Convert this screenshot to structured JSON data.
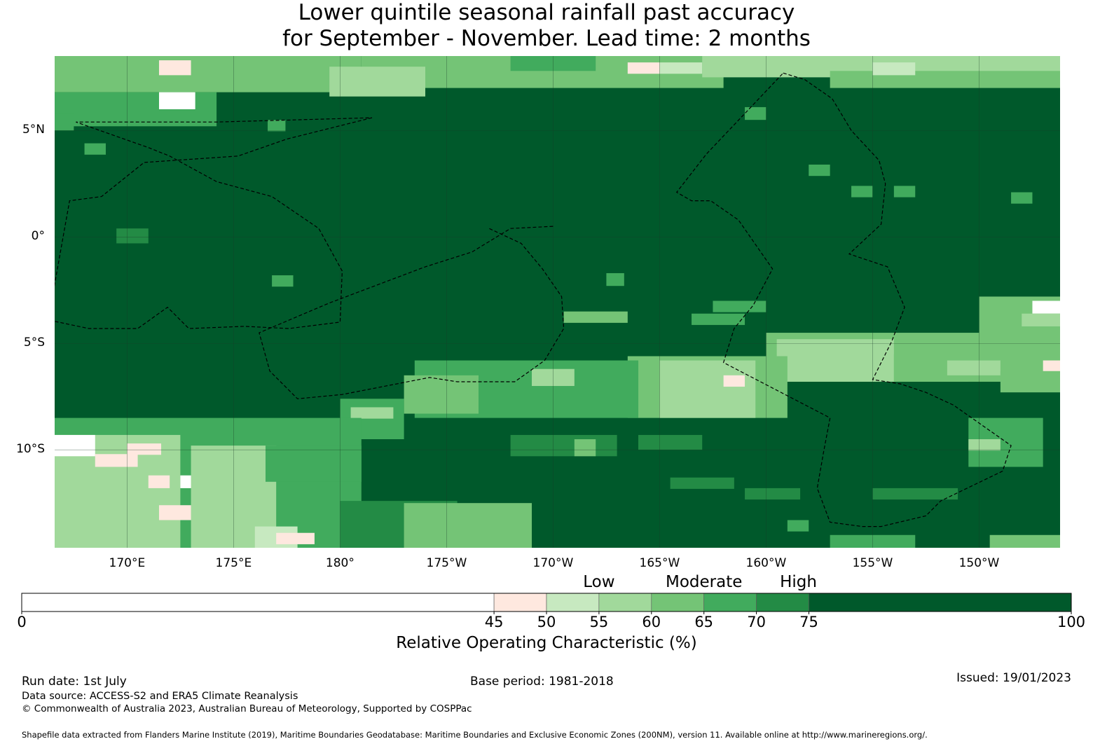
{
  "title_line1": "Lower quintile seasonal rainfall past accuracy",
  "title_line2": "for September - November. Lead time: 2 months",
  "map": {
    "lat_labels": [
      {
        "text": "5°N",
        "lat": 5
      },
      {
        "text": "0°",
        "lat": 0
      },
      {
        "text": "5°S",
        "lat": -5
      },
      {
        "text": "10°S",
        "lat": -10
      }
    ],
    "lon_labels": [
      {
        "text": "170°E",
        "lon": 170
      },
      {
        "text": "175°E",
        "lon": 175
      },
      {
        "text": "180°",
        "lon": 180
      },
      {
        "text": "175°W",
        "lon": 185
      },
      {
        "text": "170°W",
        "lon": 190
      },
      {
        "text": "165°W",
        "lon": 195
      },
      {
        "text": "160°W",
        "lon": 200
      },
      {
        "text": "155°W",
        "lon": 205
      },
      {
        "text": "150°W",
        "lon": 210
      }
    ],
    "extent": {
      "lon_min": 166.6,
      "lon_max": 213.8,
      "lat_min": -14.6,
      "lat_max": 8.5
    },
    "base_color": "#00592b",
    "patches": [
      {
        "lon": [
          166.6,
          181.0
        ],
        "lat": [
          6.8,
          8.5
        ],
        "value": 62
      },
      {
        "lon": [
          166.6,
          174.2
        ],
        "lat": [
          5.2,
          6.8
        ],
        "value": 66
      },
      {
        "lon": [
          171.5,
          173.2
        ],
        "lat": [
          6.0,
          6.8
        ],
        "value": 30
      },
      {
        "lon": [
          171.5,
          173.0
        ],
        "lat": [
          7.6,
          8.3
        ],
        "value": 47
      },
      {
        "lon": [
          181.0,
          198.0
        ],
        "lat": [
          7.0,
          8.5
        ],
        "value": 60
      },
      {
        "lon": [
          179.5,
          184.0
        ],
        "lat": [
          6.6,
          8.0
        ],
        "value": 56
      },
      {
        "lon": [
          188.0,
          192.0
        ],
        "lat": [
          7.8,
          8.5
        ],
        "value": 66
      },
      {
        "lon": [
          193.5,
          195.0
        ],
        "lat": [
          7.7,
          8.2
        ],
        "value": 47
      },
      {
        "lon": [
          195.0,
          197.0
        ],
        "lat": [
          7.7,
          8.2
        ],
        "value": 53
      },
      {
        "lon": [
          197.0,
          213.8
        ],
        "lat": [
          7.5,
          8.5
        ],
        "value": 58
      },
      {
        "lon": [
          203.0,
          213.8
        ],
        "lat": [
          7.0,
          7.8
        ],
        "value": 62
      },
      {
        "lon": [
          205.0,
          207.0
        ],
        "lat": [
          7.6,
          8.2
        ],
        "value": 53
      },
      {
        "lon": [
          166.6,
          167.5
        ],
        "lat": [
          5.0,
          5.8
        ],
        "value": 66
      },
      {
        "lon": [
          176.6,
          177.4
        ],
        "lat": [
          5.0,
          5.5
        ],
        "value": 68
      },
      {
        "lon": [
          168.0,
          169.0
        ],
        "lat": [
          3.9,
          4.4
        ],
        "value": 68
      },
      {
        "lon": [
          199.0,
          200.0
        ],
        "lat": [
          5.5,
          6.1
        ],
        "value": 68
      },
      {
        "lon": [
          169.5,
          171.0
        ],
        "lat": [
          -0.3,
          0.4
        ],
        "value": 72
      },
      {
        "lon": [
          176.8,
          177.8
        ],
        "lat": [
          -2.3,
          -1.8
        ],
        "value": 68
      },
      {
        "lon": [
          202.0,
          203.0
        ],
        "lat": [
          3.0,
          3.4
        ],
        "value": 68
      },
      {
        "lon": [
          204.0,
          205.0
        ],
        "lat": [
          2.0,
          2.4
        ],
        "value": 68
      },
      {
        "lon": [
          211.5,
          212.5
        ],
        "lat": [
          1.6,
          2.1
        ],
        "value": 68
      },
      {
        "lon": [
          206.0,
          207.0
        ],
        "lat": [
          2.0,
          2.4
        ],
        "value": 68
      },
      {
        "lon": [
          192.5,
          193.3
        ],
        "lat": [
          -1.7,
          -2.3
        ],
        "value": 68
      },
      {
        "lon": [
          197.5,
          200.0
        ],
        "lat": [
          -3.0,
          -3.5
        ],
        "value": 66
      },
      {
        "lon": [
          190.5,
          193.5
        ],
        "lat": [
          -3.5,
          -4.0
        ],
        "value": 63
      },
      {
        "lon": [
          196.5,
          199.0
        ],
        "lat": [
          -4.0,
          -3.6
        ],
        "value": 68
      },
      {
        "lon": [
          210.0,
          213.8
        ],
        "lat": [
          -2.8,
          -5.0
        ],
        "value": 62
      },
      {
        "lon": [
          212.5,
          213.8
        ],
        "lat": [
          -3.0,
          -3.6
        ],
        "value": 30
      },
      {
        "lon": [
          212.0,
          213.8
        ],
        "lat": [
          -3.6,
          -4.2
        ],
        "value": 56
      },
      {
        "lon": [
          200.0,
          213.8
        ],
        "lat": [
          -4.5,
          -6.8
        ],
        "value": 62
      },
      {
        "lon": [
          200.5,
          206.0
        ],
        "lat": [
          -4.8,
          -6.8
        ],
        "value": 57
      },
      {
        "lon": [
          206.0,
          209.5
        ],
        "lat": [
          -5.5,
          -6.8
        ],
        "value": 60
      },
      {
        "lon": [
          208.5,
          211.0
        ],
        "lat": [
          -5.8,
          -6.5
        ],
        "value": 55
      },
      {
        "lon": [
          213.0,
          213.8
        ],
        "lat": [
          -5.8,
          -6.3
        ],
        "value": 47
      },
      {
        "lon": [
          211.0,
          213.8
        ],
        "lat": [
          -6.3,
          -7.3
        ],
        "value": 60
      },
      {
        "lon": [
          193.5,
          201.0
        ],
        "lat": [
          -5.6,
          -8.5
        ],
        "value": 62
      },
      {
        "lon": [
          195.0,
          199.5
        ],
        "lat": [
          -5.8,
          -8.5
        ],
        "value": 56
      },
      {
        "lon": [
          198.0,
          199.0
        ],
        "lat": [
          -6.5,
          -7.0
        ],
        "value": 47
      },
      {
        "lon": [
          183.5,
          194.0
        ],
        "lat": [
          -5.8,
          -8.5
        ],
        "value": 68
      },
      {
        "lon": [
          183.0,
          186.5
        ],
        "lat": [
          -6.5,
          -8.3
        ],
        "value": 63
      },
      {
        "lon": [
          189.0,
          191.0
        ],
        "lat": [
          -6.2,
          -7.0
        ],
        "value": 57
      },
      {
        "lon": [
          180.0,
          183.0
        ],
        "lat": [
          -7.6,
          -9.5
        ],
        "value": 65
      },
      {
        "lon": [
          180.5,
          182.5
        ],
        "lat": [
          -8.0,
          -8.5
        ],
        "value": 57
      },
      {
        "lon": [
          166.6,
          181.0
        ],
        "lat": [
          -8.5,
          -14.6
        ],
        "value": 66
      },
      {
        "lon": [
          166.6,
          172.5
        ],
        "lat": [
          -9.3,
          -14.6
        ],
        "value": 58
      },
      {
        "lon": [
          166.6,
          168.5
        ],
        "lat": [
          -9.3,
          -10.3
        ],
        "value": 30
      },
      {
        "lon": [
          168.5,
          170.5
        ],
        "lat": [
          -10.2,
          -10.8
        ],
        "value": 47
      },
      {
        "lon": [
          170.0,
          171.6
        ],
        "lat": [
          -9.7,
          -10.2
        ],
        "value": 47
      },
      {
        "lon": [
          172.5,
          173.3
        ],
        "lat": [
          -11.2,
          -11.8
        ],
        "value": 30
      },
      {
        "lon": [
          171.5,
          173.3
        ],
        "lat": [
          -12.6,
          -13.3
        ],
        "value": 47
      },
      {
        "lon": [
          171.0,
          172.0
        ],
        "lat": [
          -11.2,
          -11.8
        ],
        "value": 47
      },
      {
        "lon": [
          173.0,
          177.0
        ],
        "lat": [
          -9.8,
          -14.6
        ],
        "value": 56
      },
      {
        "lon": [
          176.5,
          181.0
        ],
        "lat": [
          -9.8,
          -11.5
        ],
        "value": 68
      },
      {
        "lon": [
          176.0,
          178.0
        ],
        "lat": [
          -13.6,
          -14.6
        ],
        "value": 53
      },
      {
        "lon": [
          177.0,
          178.8
        ],
        "lat": [
          -13.9,
          -14.3
        ],
        "value": 47
      },
      {
        "lon": [
          180.0,
          185.5
        ],
        "lat": [
          -12.4,
          -14.6
        ],
        "value": 70
      },
      {
        "lon": [
          183.0,
          189.0
        ],
        "lat": [
          -12.5,
          -14.6
        ],
        "value": 64
      },
      {
        "lon": [
          188.0,
          193.0
        ],
        "lat": [
          -9.3,
          -10.3
        ],
        "value": 70
      },
      {
        "lon": [
          191.0,
          192.0
        ],
        "lat": [
          -9.5,
          -10.3
        ],
        "value": 60
      },
      {
        "lon": [
          194.0,
          197.0
        ],
        "lat": [
          -9.3,
          -10.0
        ],
        "value": 70
      },
      {
        "lon": [
          195.5,
          198.5
        ],
        "lat": [
          -11.3,
          -11.8
        ],
        "value": 70
      },
      {
        "lon": [
          199.0,
          201.6
        ],
        "lat": [
          -11.8,
          -12.3
        ],
        "value": 70
      },
      {
        "lon": [
          205.0,
          209.0
        ],
        "lat": [
          -11.8,
          -12.3
        ],
        "value": 70
      },
      {
        "lon": [
          209.5,
          213.0
        ],
        "lat": [
          -8.5,
          -10.8
        ],
        "value": 68
      },
      {
        "lon": [
          209.5,
          211.0
        ],
        "lat": [
          -9.5,
          -10.0
        ],
        "value": 57
      },
      {
        "lon": [
          210.5,
          213.8
        ],
        "lat": [
          -14.0,
          -14.6
        ],
        "value": 62
      },
      {
        "lon": [
          203.0,
          207.0
        ],
        "lat": [
          -14.0,
          -14.6
        ],
        "value": 68
      },
      {
        "lon": [
          201.0,
          202.0
        ],
        "lat": [
          -13.3,
          -13.8
        ],
        "value": 68
      }
    ],
    "eez_boundaries": [
      {
        "name": "gilberts",
        "points": [
          [
            181.5,
            5.6
          ],
          [
            177.5,
            4.6
          ],
          [
            175.2,
            3.8
          ],
          [
            170.8,
            3.5
          ],
          [
            168.8,
            1.9
          ],
          [
            167.3,
            1.7
          ],
          [
            166.3,
            -3.9
          ],
          [
            168.2,
            -4.3
          ],
          [
            170.5,
            -4.3
          ],
          [
            171.9,
            -3.3
          ],
          [
            172.9,
            -4.3
          ],
          [
            175.5,
            -4.2
          ],
          [
            177.6,
            -4.3
          ],
          [
            180.0,
            -4.0
          ],
          [
            180.1,
            -1.6
          ],
          [
            179.0,
            0.4
          ],
          [
            176.8,
            1.9
          ],
          [
            174.2,
            2.6
          ],
          [
            172.0,
            3.8
          ],
          [
            171.0,
            4.2
          ],
          [
            167.6,
            5.4
          ],
          [
            174.2,
            5.4
          ],
          [
            181.5,
            5.6
          ]
        ]
      },
      {
        "name": "phoenix",
        "points": [
          [
            190.0,
            0.5
          ],
          [
            188.0,
            0.4
          ],
          [
            186.2,
            -0.7
          ],
          [
            184.0,
            -1.4
          ],
          [
            179.5,
            -3.1
          ],
          [
            176.2,
            -4.5
          ],
          [
            176.7,
            -6.3
          ],
          [
            178.0,
            -7.6
          ],
          [
            180.1,
            -7.4
          ],
          [
            184.2,
            -6.6
          ],
          [
            185.5,
            -6.8
          ],
          [
            187.4,
            -6.8
          ],
          [
            188.2,
            -6.8
          ],
          [
            189.6,
            -5.8
          ],
          [
            190.5,
            -4.3
          ],
          [
            190.4,
            -2.8
          ],
          [
            189.5,
            -1.5
          ],
          [
            188.5,
            -0.3
          ],
          [
            187.0,
            0.4
          ]
        ]
      },
      {
        "name": "lines",
        "points": [
          [
            200.8,
            7.7
          ],
          [
            201.8,
            7.4
          ],
          [
            203.1,
            6.5
          ],
          [
            204.0,
            5.0
          ],
          [
            205.3,
            3.6
          ],
          [
            205.6,
            2.5
          ],
          [
            205.4,
            0.6
          ],
          [
            203.9,
            -0.8
          ],
          [
            205.7,
            -1.4
          ],
          [
            206.5,
            -3.3
          ],
          [
            205.9,
            -4.9
          ],
          [
            205.0,
            -6.7
          ],
          [
            206.3,
            -6.9
          ],
          [
            207.5,
            -7.3
          ],
          [
            208.8,
            -7.9
          ],
          [
            211.5,
            -9.8
          ],
          [
            211.1,
            -11.0
          ],
          [
            208.2,
            -12.4
          ],
          [
            207.5,
            -13.1
          ],
          [
            205.4,
            -13.6
          ],
          [
            204.5,
            -13.6
          ],
          [
            203.0,
            -13.4
          ],
          [
            202.4,
            -11.8
          ],
          [
            202.7,
            -10.1
          ],
          [
            203.0,
            -8.5
          ],
          [
            198.0,
            -5.9
          ],
          [
            198.5,
            -4.3
          ],
          [
            199.4,
            -3.2
          ],
          [
            200.3,
            -1.5
          ],
          [
            198.7,
            0.8
          ],
          [
            197.4,
            1.7
          ],
          [
            196.5,
            1.7
          ],
          [
            195.8,
            2.1
          ],
          [
            197.2,
            3.9
          ],
          [
            200.8,
            7.7
          ]
        ]
      }
    ]
  },
  "legend": {
    "categories": [
      {
        "text": "Low",
        "pos": 55
      },
      {
        "text": "Moderate",
        "pos": 65
      },
      {
        "text": "High",
        "pos": 74
      }
    ],
    "segments": [
      {
        "from": 0,
        "to": 45,
        "color": "#ffffff"
      },
      {
        "from": 45,
        "to": 50,
        "color": "#fee8df"
      },
      {
        "from": 50,
        "to": 55,
        "color": "#c7e9c0"
      },
      {
        "from": 55,
        "to": 60,
        "color": "#a1d99b"
      },
      {
        "from": 60,
        "to": 65,
        "color": "#74c476"
      },
      {
        "from": 65,
        "to": 70,
        "color": "#41ab5d"
      },
      {
        "from": 70,
        "to": 75,
        "color": "#238b45"
      },
      {
        "from": 75,
        "to": 100,
        "color": "#00592b"
      }
    ],
    "ticks": [
      "0",
      "45",
      "50",
      "55",
      "60",
      "65",
      "70",
      "75",
      "100"
    ],
    "label": "Relative Operating Characteristic (%)"
  },
  "footer": {
    "run_date": "Run date: 1st July",
    "base_period": "Base period: 1981-2018",
    "issued": "Issued: 19/01/2023",
    "data_source": "Data source: ACCESS-S2 and ERA5 Climate Reanalysis",
    "copyright": "© Commonwealth of Australia 2023, Australian Bureau of Meteorology, Supported by COSPPac",
    "shapefile": "Shapefile data extracted from Flanders Marine Institute (2019), Maritime Boundaries Geodatabase: Maritime Boundaries and Exclusive Economic Zones (200NM), version 11. Available online at http://www.marineregions.org/."
  }
}
